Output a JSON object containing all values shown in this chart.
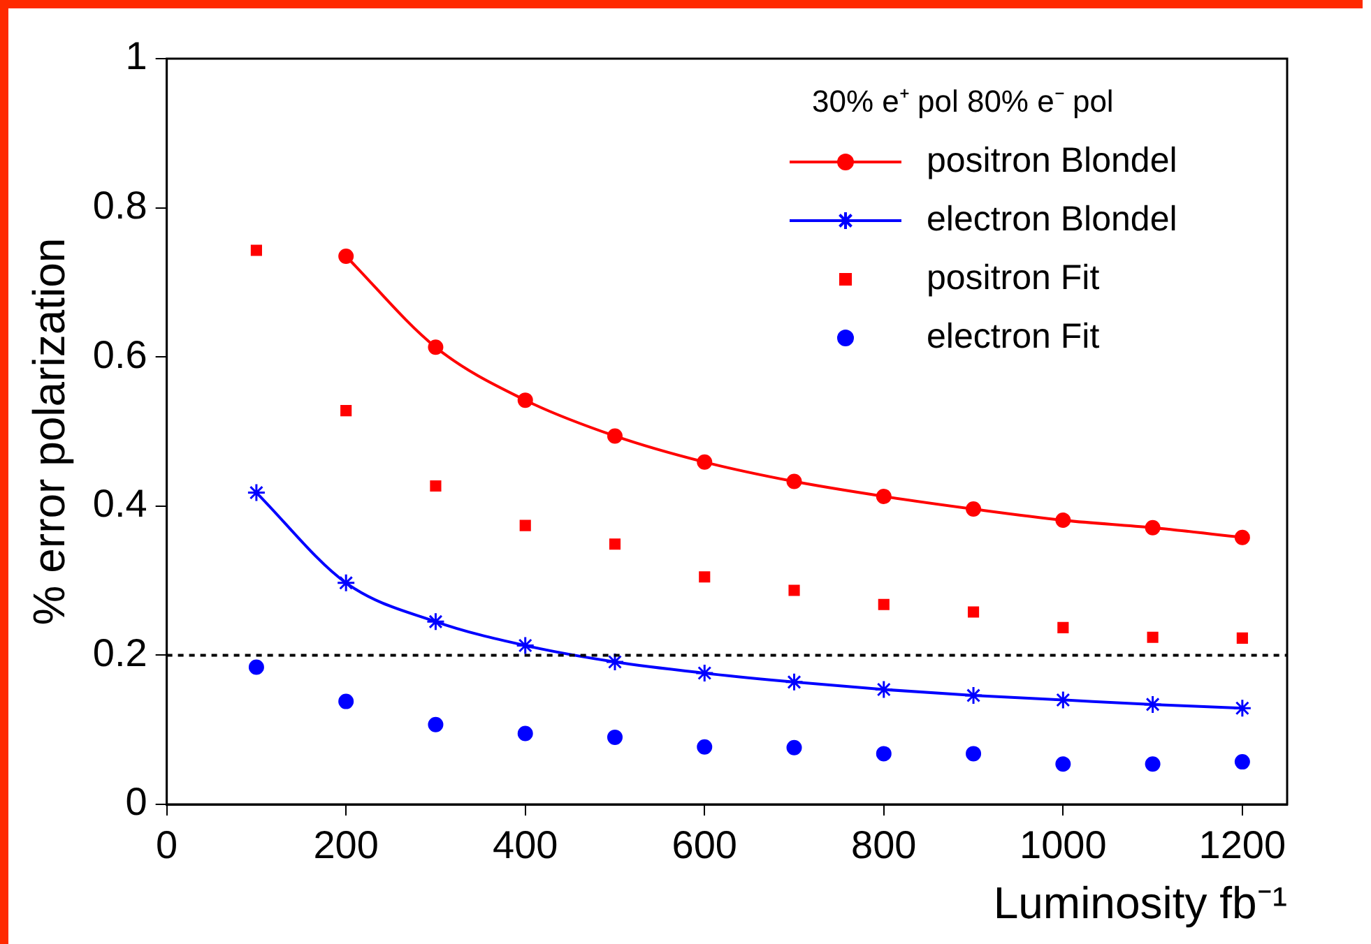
{
  "chart_data": {
    "type": "line",
    "xlabel": "Luminosity fb⁻¹",
    "ylabel": "% error polarization",
    "legend_title": "30% e⁺ pol 80% e⁻ pol",
    "legend": "top right",
    "grid": false,
    "xlim": [
      0,
      1250
    ],
    "xticks": [
      0,
      200,
      400,
      600,
      800,
      1000,
      1200
    ],
    "ylim": [
      0,
      1
    ],
    "yticks": [
      0,
      0.2,
      0.4,
      0.6,
      0.8,
      1
    ],
    "ref_lines": [
      {
        "axis": "y",
        "value": 0.2,
        "line_style": "dotted",
        "color": "#000000"
      }
    ],
    "series": [
      {
        "name": "positron Blondel",
        "type": "line",
        "marker": "circle",
        "color": "#ff0000",
        "x": [
          200,
          300,
          400,
          500,
          600,
          700,
          800,
          900,
          1000,
          1100,
          1200
        ],
        "values": [
          0.735,
          0.613,
          0.542,
          0.494,
          0.459,
          0.433,
          0.413,
          0.396,
          0.381,
          0.371,
          0.358
        ]
      },
      {
        "name": "electron Blondel",
        "type": "line",
        "marker": "cross",
        "color": "#0000ff",
        "x": [
          100,
          200,
          300,
          400,
          500,
          600,
          700,
          800,
          900,
          1000,
          1100,
          1200
        ],
        "values": [
          0.418,
          0.297,
          0.245,
          0.213,
          0.191,
          0.176,
          0.164,
          0.154,
          0.146,
          0.14,
          0.134,
          0.129
        ]
      },
      {
        "name": "positron Fit",
        "type": "scatter",
        "marker": "square",
        "color": "#ff0000",
        "x": [
          100,
          200,
          300,
          400,
          500,
          600,
          700,
          800,
          900,
          1000,
          1100,
          1200
        ],
        "values": [
          0.743,
          0.528,
          0.427,
          0.374,
          0.349,
          0.305,
          0.287,
          0.268,
          0.258,
          0.237,
          0.224,
          0.223
        ]
      },
      {
        "name": "electron Fit",
        "type": "scatter",
        "marker": "circle",
        "color": "#0000ff",
        "x": [
          100,
          200,
          300,
          400,
          500,
          600,
          700,
          800,
          900,
          1000,
          1100,
          1200
        ],
        "values": [
          0.184,
          0.138,
          0.107,
          0.095,
          0.09,
          0.077,
          0.076,
          0.068,
          0.068,
          0.054,
          0.054,
          0.057
        ]
      }
    ]
  }
}
